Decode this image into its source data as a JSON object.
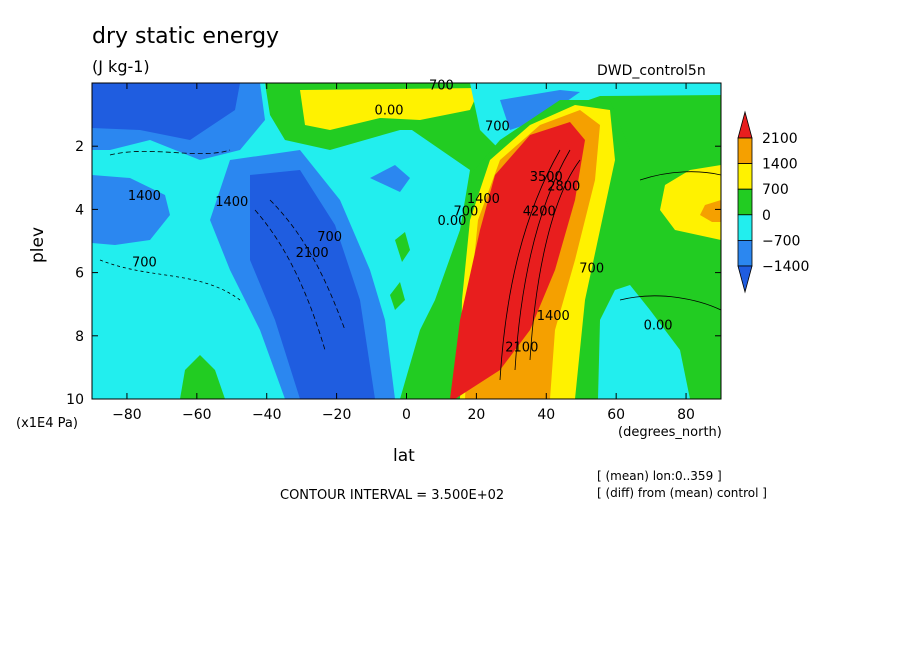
{
  "chart_data": {
    "type": "contour",
    "title": "dry static energy",
    "units": "(J kg-1)",
    "experiment": "DWD_control5n",
    "xlabel": "lat",
    "x_units": "(degrees_north)",
    "ylabel": "plev",
    "y_units": "(x1E4 Pa)",
    "xlim": [
      -90,
      90
    ],
    "ylim": [
      10,
      0
    ],
    "x_ticks": [
      -80,
      -60,
      -40,
      -20,
      0,
      20,
      40,
      60,
      80
    ],
    "y_ticks": [
      2,
      4,
      6,
      8,
      10
    ],
    "contour_interval_text": "CONTOUR INTERVAL = 3.500E+02",
    "notes": [
      "[ (mean) lon:0..359 ]",
      "[ (diff) from (mean) control ]"
    ],
    "colorbar": {
      "levels": [
        2100,
        1400,
        700,
        0,
        -700,
        -1400
      ],
      "colors": [
        "#e81e1e",
        "#f5a000",
        "#fff200",
        "#22cc22",
        "#22eeee",
        "#2b87f0",
        "#1f5de0"
      ]
    },
    "contour_labels": [
      {
        "text": "700",
        "lat": 10,
        "plev": 0.2
      },
      {
        "text": "0.00",
        "lat": -5,
        "plev": 1.0
      },
      {
        "text": "700",
        "lat": 26,
        "plev": 1.5
      },
      {
        "text": "1400",
        "lat": -75,
        "plev": 3.7
      },
      {
        "text": "1400",
        "lat": -50,
        "plev": 3.9
      },
      {
        "text": "700",
        "lat": -22,
        "plev": 5.0
      },
      {
        "text": "2100",
        "lat": -27,
        "plev": 5.5
      },
      {
        "text": "700",
        "lat": -75,
        "plev": 5.8
      },
      {
        "text": "0.00",
        "lat": 13,
        "plev": 4.5
      },
      {
        "text": "700",
        "lat": 17,
        "plev": 4.2
      },
      {
        "text": "1400",
        "lat": 22,
        "plev": 3.8
      },
      {
        "text": "4200",
        "lat": 38,
        "plev": 4.2
      },
      {
        "text": "3500",
        "lat": 40,
        "plev": 3.1
      },
      {
        "text": "2800",
        "lat": 45,
        "plev": 3.4
      },
      {
        "text": "700",
        "lat": 53,
        "plev": 6.0
      },
      {
        "text": "1400",
        "lat": 42,
        "plev": 7.5
      },
      {
        "text": "2100",
        "lat": 33,
        "plev": 8.5
      },
      {
        "text": "0.00",
        "lat": 72,
        "plev": 7.8
      }
    ]
  }
}
